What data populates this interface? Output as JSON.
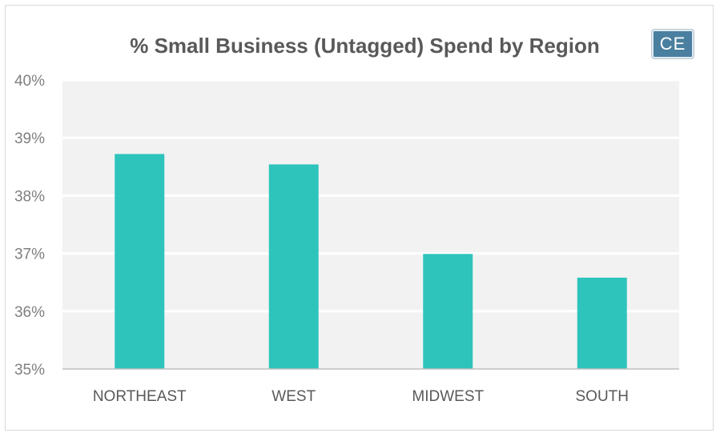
{
  "brand": {
    "logo_text": "CE"
  },
  "chart_data": {
    "type": "bar",
    "title": "% Small Business (Untagged) Spend by Region",
    "xlabel": "",
    "ylabel": "",
    "categories": [
      "NORTHEAST",
      "WEST",
      "MIDWEST",
      "SOUTH"
    ],
    "values": [
      38.72,
      38.54,
      36.99,
      36.58
    ],
    "ylim": [
      35,
      40
    ],
    "yticks": [
      "35%",
      "36%",
      "37%",
      "38%",
      "39%",
      "40%"
    ],
    "grid": true,
    "legend": "none",
    "colors": {
      "bar": "#2ec4bc",
      "plot_background": "#f2f2f2",
      "grid": "#ffffff",
      "axis": "#bfbfbf"
    }
  }
}
